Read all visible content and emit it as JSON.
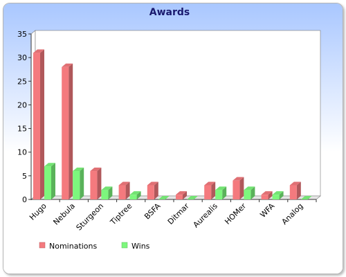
{
  "chart_data": {
    "type": "bar",
    "title": "Awards",
    "xlabel": "",
    "ylabel": "",
    "categories": [
      "Hugo",
      "Nebula",
      "Sturgeon",
      "Tiptree",
      "BSFA",
      "Ditmar",
      "Aurealis",
      "HOMer",
      "WFA",
      "Analog"
    ],
    "series": [
      {
        "name": "Nominations",
        "values": [
          31,
          28,
          6,
          3,
          3,
          1,
          3,
          4,
          1,
          3
        ],
        "color": "#f47a7e"
      },
      {
        "name": "Wins",
        "values": [
          7,
          6,
          2,
          1,
          0,
          0,
          2,
          2,
          1,
          0
        ],
        "color": "#7df77d"
      }
    ],
    "ylim": [
      0,
      35
    ],
    "yticks": [
      0,
      5,
      10,
      15,
      20,
      25,
      30,
      35
    ],
    "grid": false,
    "legend_position": "bottom-left",
    "background_gradient": [
      "#a9c7ff",
      "#ffffff"
    ]
  }
}
